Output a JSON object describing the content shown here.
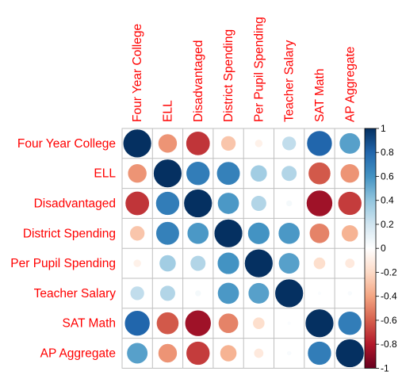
{
  "chart_data": {
    "type": "heatmap",
    "variables": [
      "Four Year College",
      "ELL",
      "Disadvantaged",
      "District Spending",
      "Per Pupil Spending",
      "Teacher Salary",
      "SAT Math",
      "AP Aggregate"
    ],
    "matrix": [
      [
        1.0,
        -0.45,
        -0.72,
        -0.28,
        -0.08,
        0.25,
        0.8,
        0.55
      ],
      [
        -0.45,
        1.0,
        0.7,
        0.68,
        0.35,
        0.3,
        -0.62,
        -0.45
      ],
      [
        -0.72,
        0.7,
        1.0,
        0.58,
        0.3,
        0.05,
        -0.85,
        -0.7
      ],
      [
        -0.28,
        0.68,
        0.58,
        1.0,
        0.6,
        0.58,
        -0.5,
        -0.35
      ],
      [
        -0.08,
        0.35,
        0.3,
        0.6,
        1.0,
        0.55,
        -0.18,
        -0.12
      ],
      [
        0.25,
        0.3,
        0.05,
        0.58,
        0.55,
        1.0,
        0.02,
        0.03
      ],
      [
        0.8,
        -0.62,
        -0.85,
        -0.5,
        -0.18,
        0.02,
        1.0,
        0.7
      ],
      [
        0.55,
        -0.45,
        -0.7,
        -0.35,
        -0.12,
        0.03,
        0.7,
        1.0
      ]
    ],
    "colorbar": {
      "range": [
        -1,
        1
      ],
      "ticks": [
        "1",
        "0.8",
        "0.6",
        "0.4",
        "0.2",
        "0",
        "-0.2",
        "-0.4",
        "-0.6",
        "-0.8",
        "-1"
      ]
    },
    "colors": {
      "label": "#ff0000",
      "grid": "#bfbfbf",
      "stops": [
        "#67001f",
        "#b2182b",
        "#d6604d",
        "#f4a582",
        "#fddbc7",
        "#ffffff",
        "#d1e5f0",
        "#92c5de",
        "#4393c3",
        "#2166ac",
        "#053061"
      ]
    }
  }
}
